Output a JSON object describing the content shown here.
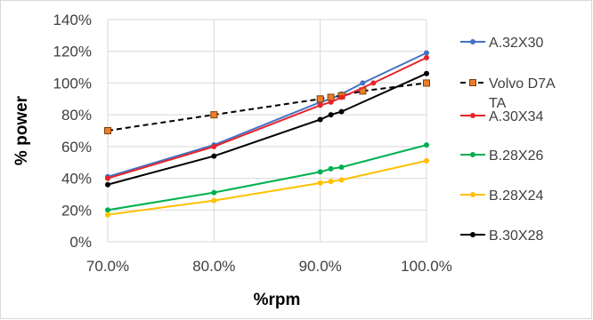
{
  "chart_data": {
    "type": "line",
    "xlabel": "%rpm",
    "ylabel": "% power",
    "x_ticks": [
      "70.0%",
      "80.0%",
      "90.0%",
      "100.0%"
    ],
    "y_ticks": [
      "0%",
      "20%",
      "40%",
      "60%",
      "80%",
      "100%",
      "120%",
      "140%"
    ],
    "xlim": [
      70,
      100
    ],
    "ylim": [
      0,
      140
    ],
    "grid": true,
    "legend_position": "right",
    "series": [
      {
        "name": "A.32X30",
        "color": "#4472c4",
        "dash": false,
        "marker": "circle",
        "points": [
          [
            70,
            41
          ],
          [
            80,
            61
          ],
          [
            90,
            88
          ],
          [
            91,
            90
          ],
          [
            92,
            93
          ],
          [
            94,
            100
          ],
          [
            100,
            119
          ]
        ]
      },
      {
        "name": "Volvo D7A TA",
        "color": "#000000",
        "marker_fill": "#ed7d31",
        "dash": true,
        "marker": "square",
        "points": [
          [
            70,
            70
          ],
          [
            80,
            80
          ],
          [
            90,
            90
          ],
          [
            91,
            91
          ],
          [
            92,
            92
          ],
          [
            94,
            95
          ],
          [
            100,
            100
          ]
        ]
      },
      {
        "name": "A.30X34",
        "color": "#e8242a",
        "dash": false,
        "marker": "circle",
        "points": [
          [
            70,
            40
          ],
          [
            80,
            60
          ],
          [
            90,
            86
          ],
          [
            91,
            88
          ],
          [
            92,
            91
          ],
          [
            95,
            100
          ],
          [
            100,
            116
          ]
        ]
      },
      {
        "name": "B.28X26",
        "color": "#00b050",
        "dash": false,
        "marker": "circle",
        "points": [
          [
            70,
            20
          ],
          [
            80,
            31
          ],
          [
            90,
            44
          ],
          [
            91,
            46
          ],
          [
            92,
            47
          ],
          [
            100,
            61
          ]
        ]
      },
      {
        "name": "B.28X24",
        "color": "#ffc000",
        "dash": false,
        "marker": "circle",
        "points": [
          [
            70,
            17
          ],
          [
            80,
            26
          ],
          [
            90,
            37
          ],
          [
            91,
            38
          ],
          [
            92,
            39
          ],
          [
            100,
            51
          ]
        ]
      },
      {
        "name": "B.30X28",
        "color": "#000000",
        "dash": false,
        "marker": "circle",
        "points": [
          [
            70,
            36
          ],
          [
            80,
            54
          ],
          [
            90,
            77
          ],
          [
            91,
            80
          ],
          [
            92,
            82
          ],
          [
            100,
            106
          ]
        ]
      }
    ]
  }
}
